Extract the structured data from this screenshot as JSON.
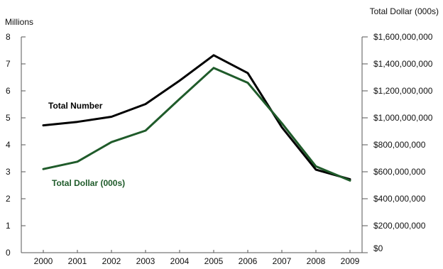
{
  "chart_data": {
    "type": "line",
    "categories": [
      "2000",
      "2001",
      "2002",
      "2003",
      "2004",
      "2005",
      "2006",
      "2007",
      "2008",
      "2009"
    ],
    "y_left": {
      "label": "Millions",
      "ylim": [
        0,
        8
      ],
      "ticks": [
        "0",
        "1",
        "2",
        "3",
        "4",
        "5",
        "6",
        "7",
        "8"
      ]
    },
    "y_right": {
      "label": "Total Dollar (000s)",
      "ylim": [
        0,
        1600000000
      ],
      "ticks": [
        "$0",
        "$200,000,000",
        "$400,000,000",
        "$600,000,000",
        "$800,000,000",
        "$1,000,000,000",
        "$1,200,000,000",
        "$1,400,000,000",
        "$1,600,000,000"
      ]
    },
    "series": [
      {
        "name": "Total Number",
        "axis": "left",
        "color": "#000000",
        "values": [
          4.72,
          4.85,
          5.04,
          5.51,
          6.38,
          7.32,
          6.66,
          4.65,
          3.08,
          2.72
        ]
      },
      {
        "name": "Total Dollar (000s)",
        "axis": "right",
        "color": "#1f5b2a",
        "values": [
          620000000,
          675000000,
          820000000,
          905000000,
          1140000000,
          1370000000,
          1260000000,
          960000000,
          640000000,
          535000000
        ]
      }
    ],
    "grid": false
  }
}
